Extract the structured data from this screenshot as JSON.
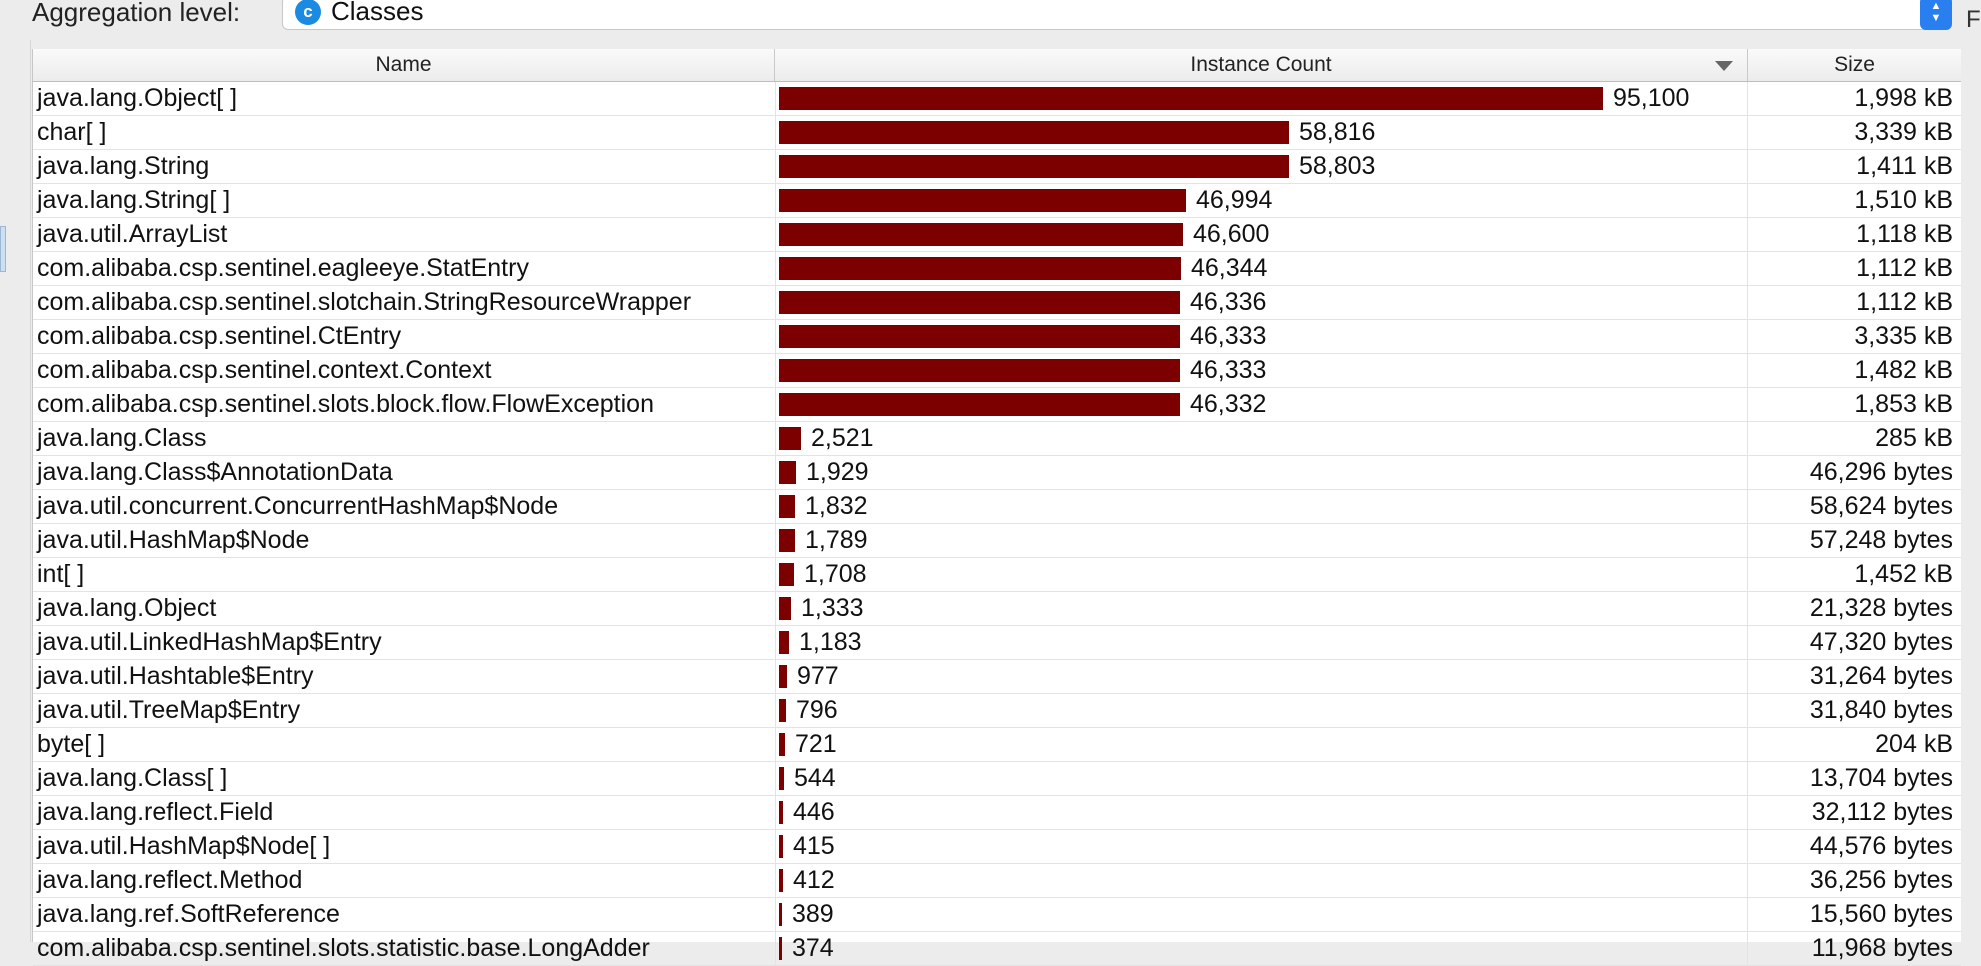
{
  "aggregation": {
    "label": "Aggregation level:",
    "selected": "Classes",
    "icon_letter": "c"
  },
  "edge_text": "F",
  "table": {
    "columns": {
      "name": "Name",
      "count": "Instance Count",
      "size": "Size"
    },
    "max_count": 95100,
    "rows": [
      {
        "name": "java.lang.Object[ ]",
        "count": 95100,
        "count_label": "95,100",
        "size": "1,998 kB"
      },
      {
        "name": "char[ ]",
        "count": 58816,
        "count_label": "58,816",
        "size": "3,339 kB"
      },
      {
        "name": "java.lang.String",
        "count": 58803,
        "count_label": "58,803",
        "size": "1,411 kB"
      },
      {
        "name": "java.lang.String[ ]",
        "count": 46994,
        "count_label": "46,994",
        "size": "1,510 kB"
      },
      {
        "name": "java.util.ArrayList",
        "count": 46600,
        "count_label": "46,600",
        "size": "1,118 kB"
      },
      {
        "name": "com.alibaba.csp.sentinel.eagleeye.StatEntry",
        "count": 46344,
        "count_label": "46,344",
        "size": "1,112 kB"
      },
      {
        "name": "com.alibaba.csp.sentinel.slotchain.StringResourceWrapper",
        "count": 46336,
        "count_label": "46,336",
        "size": "1,112 kB"
      },
      {
        "name": "com.alibaba.csp.sentinel.CtEntry",
        "count": 46333,
        "count_label": "46,333",
        "size": "3,335 kB"
      },
      {
        "name": "com.alibaba.csp.sentinel.context.Context",
        "count": 46333,
        "count_label": "46,333",
        "size": "1,482 kB"
      },
      {
        "name": "com.alibaba.csp.sentinel.slots.block.flow.FlowException",
        "count": 46332,
        "count_label": "46,332",
        "size": "1,853 kB"
      },
      {
        "name": "java.lang.Class",
        "count": 2521,
        "count_label": "2,521",
        "size": "285 kB"
      },
      {
        "name": "java.lang.Class$AnnotationData",
        "count": 1929,
        "count_label": "1,929",
        "size": "46,296 bytes"
      },
      {
        "name": "java.util.concurrent.ConcurrentHashMap$Node",
        "count": 1832,
        "count_label": "1,832",
        "size": "58,624 bytes"
      },
      {
        "name": "java.util.HashMap$Node",
        "count": 1789,
        "count_label": "1,789",
        "size": "57,248 bytes"
      },
      {
        "name": "int[ ]",
        "count": 1708,
        "count_label": "1,708",
        "size": "1,452 kB"
      },
      {
        "name": "java.lang.Object",
        "count": 1333,
        "count_label": "1,333",
        "size": "21,328 bytes"
      },
      {
        "name": "java.util.LinkedHashMap$Entry",
        "count": 1183,
        "count_label": "1,183",
        "size": "47,320 bytes"
      },
      {
        "name": "java.util.Hashtable$Entry",
        "count": 977,
        "count_label": "977",
        "size": "31,264 bytes"
      },
      {
        "name": "java.util.TreeMap$Entry",
        "count": 796,
        "count_label": "796",
        "size": "31,840 bytes"
      },
      {
        "name": "byte[ ]",
        "count": 721,
        "count_label": "721",
        "size": "204 kB"
      },
      {
        "name": "java.lang.Class[ ]",
        "count": 544,
        "count_label": "544",
        "size": "13,704 bytes"
      },
      {
        "name": "java.lang.reflect.Field",
        "count": 446,
        "count_label": "446",
        "size": "32,112 bytes"
      },
      {
        "name": "java.util.HashMap$Node[ ]",
        "count": 415,
        "count_label": "415",
        "size": "44,576 bytes"
      },
      {
        "name": "java.lang.reflect.Method",
        "count": 412,
        "count_label": "412",
        "size": "36,256 bytes"
      },
      {
        "name": "java.lang.ref.SoftReference",
        "count": 389,
        "count_label": "389",
        "size": "15,560 bytes"
      },
      {
        "name": "com.alibaba.csp.sentinel.slots.statistic.base.LongAdder",
        "count": 374,
        "count_label": "374",
        "size": "11,968 bytes"
      }
    ]
  },
  "colors": {
    "bar": "#7d0000",
    "accent": "#2a7ff0"
  }
}
